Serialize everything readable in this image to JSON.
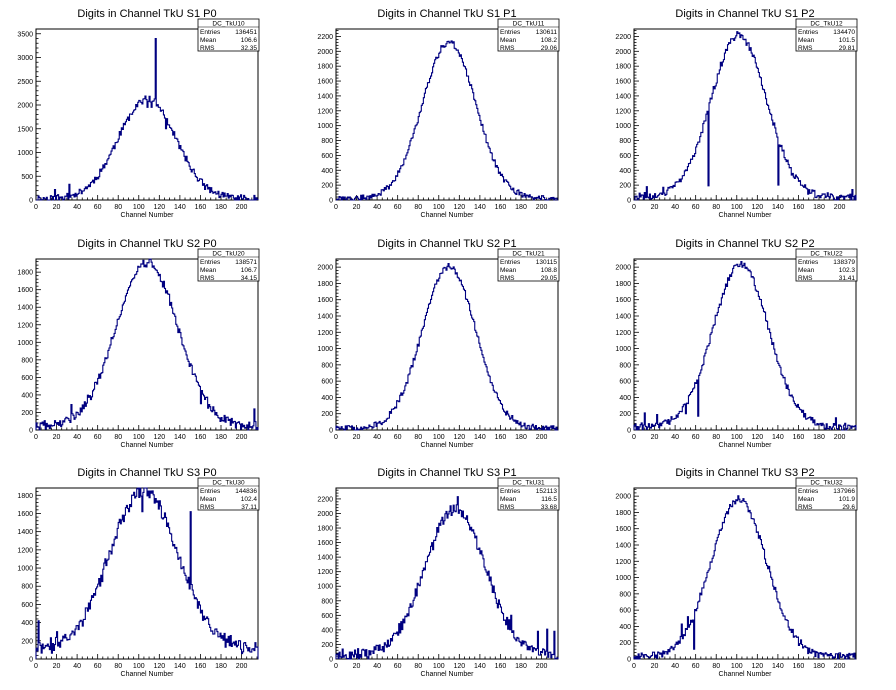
{
  "chart_data": [
    {
      "type": "histogram",
      "title": "Digits in Channel TkU S1 P0",
      "xlabel": "Channel Number",
      "xlim": [
        0,
        216
      ],
      "ylim": [
        0,
        3600
      ],
      "xticks": [
        0,
        20,
        40,
        60,
        80,
        100,
        120,
        140,
        160,
        180,
        200
      ],
      "yticks": [
        0,
        500,
        1000,
        1500,
        2000,
        2500,
        3000,
        3500
      ],
      "stats": {
        "name": "DC_TkU10",
        "entries": "136451",
        "mean": "106.6",
        "rms": "32.35"
      },
      "shape": {
        "peak_x": 108,
        "peak_y": 2100,
        "sigma": 28,
        "noise": 70,
        "baseline": 40,
        "seed": 11
      },
      "spikes": [
        [
          108,
          1950
        ],
        [
          112,
          1950
        ],
        [
          116,
          3400
        ],
        [
          120,
          1950
        ],
        [
          126,
          1500
        ],
        [
          32,
          330
        ],
        [
          18,
          220
        ]
      ]
    },
    {
      "type": "histogram",
      "title": "Digits in Channel TkU S1 P1",
      "xlabel": "Channel Number",
      "xlim": [
        0,
        216
      ],
      "ylim": [
        0,
        2300
      ],
      "xticks": [
        0,
        20,
        40,
        60,
        80,
        100,
        120,
        140,
        160,
        180,
        200
      ],
      "yticks": [
        0,
        200,
        400,
        600,
        800,
        1000,
        1200,
        1400,
        1600,
        1800,
        2000,
        2200
      ],
      "stats": {
        "name": "DC_TkU11",
        "entries": "130611",
        "mean": "108.2",
        "rms": "29.06"
      },
      "shape": {
        "peak_x": 110,
        "peak_y": 2100,
        "sigma": 26,
        "noise": 35,
        "baseline": 30,
        "seed": 21
      },
      "spikes": [
        [
          112,
          2140
        ]
      ]
    },
    {
      "type": "histogram",
      "title": "Digits in Channel TkU S1 P2",
      "xlabel": "Channel Number",
      "xlim": [
        0,
        216
      ],
      "ylim": [
        0,
        2300
      ],
      "xticks": [
        0,
        20,
        40,
        60,
        80,
        100,
        120,
        140,
        160,
        180,
        200
      ],
      "yticks": [
        0,
        200,
        400,
        600,
        800,
        1000,
        1200,
        1400,
        1600,
        1800,
        2000,
        2200
      ],
      "stats": {
        "name": "DC_TkU12",
        "entries": "134470",
        "mean": "101.5",
        "rms": "29.81"
      },
      "shape": {
        "peak_x": 102,
        "peak_y": 2180,
        "sigma": 27,
        "noise": 45,
        "baseline": 50,
        "seed": 31
      },
      "spikes": [
        [
          12,
          180
        ],
        [
          28,
          170
        ],
        [
          72,
          190
        ],
        [
          140,
          200
        ],
        [
          165,
          170
        ],
        [
          212,
          140
        ]
      ]
    },
    {
      "type": "histogram",
      "title": "Digits in Channel TkU S2 P0",
      "xlabel": "Channel Number",
      "xlim": [
        0,
        216
      ],
      "ylim": [
        0,
        1950
      ],
      "xticks": [
        0,
        20,
        40,
        60,
        80,
        100,
        120,
        140,
        160,
        180,
        200
      ],
      "yticks": [
        0,
        200,
        400,
        600,
        800,
        1000,
        1200,
        1400,
        1600,
        1800
      ],
      "stats": {
        "name": "DC_TkU20",
        "entries": "138571",
        "mean": "106.7",
        "rms": "34.15"
      },
      "shape": {
        "peak_x": 108,
        "peak_y": 1870,
        "sigma": 30,
        "noise": 45,
        "baseline": 60,
        "seed": 41
      },
      "spikes": [
        [
          34,
          290
        ],
        [
          48,
          270
        ],
        [
          160,
          300
        ],
        [
          170,
          220
        ],
        [
          212,
          240
        ]
      ]
    },
    {
      "type": "histogram",
      "title": "Digits in Channel TkU S2 P1",
      "xlabel": "Channel Number",
      "xlim": [
        0,
        216
      ],
      "ylim": [
        0,
        2100
      ],
      "xticks": [
        0,
        20,
        40,
        60,
        80,
        100,
        120,
        140,
        160,
        180,
        200
      ],
      "yticks": [
        0,
        200,
        400,
        600,
        800,
        1000,
        1200,
        1400,
        1600,
        1800,
        2000
      ],
      "stats": {
        "name": "DC_TkU21",
        "entries": "130115",
        "mean": "108.8",
        "rms": "29.05"
      },
      "shape": {
        "peak_x": 110,
        "peak_y": 1990,
        "sigma": 26,
        "noise": 35,
        "baseline": 30,
        "seed": 51
      },
      "spikes": [
        [
          108,
          2010
        ]
      ]
    },
    {
      "type": "histogram",
      "title": "Digits in Channel TkU S2 P2",
      "xlabel": "Channel Number",
      "xlim": [
        0,
        216
      ],
      "ylim": [
        0,
        2100
      ],
      "xticks": [
        0,
        20,
        40,
        60,
        80,
        100,
        120,
        140,
        160,
        180,
        200
      ],
      "yticks": [
        0,
        200,
        400,
        600,
        800,
        1000,
        1200,
        1400,
        1600,
        1800,
        2000
      ],
      "stats": {
        "name": "DC_TkU22",
        "entries": "138379",
        "mean": "102.3",
        "rms": "31.41"
      },
      "shape": {
        "peak_x": 104,
        "peak_y": 2000,
        "sigma": 27,
        "noise": 40,
        "baseline": 50,
        "seed": 61
      },
      "spikes": [
        [
          10,
          210
        ],
        [
          22,
          190
        ],
        [
          50,
          200
        ],
        [
          62,
          170
        ],
        [
          165,
          160
        ],
        [
          196,
          150
        ]
      ]
    },
    {
      "type": "histogram",
      "title": "Digits in Channel TkU S3 P0",
      "xlabel": "Channel Number",
      "xlim": [
        0,
        216
      ],
      "ylim": [
        0,
        1880
      ],
      "xticks": [
        0,
        20,
        40,
        60,
        80,
        100,
        120,
        140,
        160,
        180,
        200
      ],
      "yticks": [
        0,
        200,
        400,
        600,
        800,
        1000,
        1200,
        1400,
        1600,
        1800
      ],
      "stats": {
        "name": "DC_TkU30",
        "entries": "144836",
        "mean": "102.4",
        "rms": "37.11"
      },
      "shape": {
        "peak_x": 105,
        "peak_y": 1750,
        "sigma": 33,
        "noise": 50,
        "baseline": 150,
        "seed": 71
      },
      "spikes": [
        [
          2,
          420
        ],
        [
          20,
          300
        ],
        [
          90,
          1620
        ],
        [
          103,
          1620
        ],
        [
          150,
          1620
        ],
        [
          158,
          630
        ],
        [
          175,
          330
        ],
        [
          198,
          200
        ]
      ]
    },
    {
      "type": "histogram",
      "title": "Digits in Channel TkU S3 P1",
      "xlabel": "Channel Number",
      "xlim": [
        0,
        216
      ],
      "ylim": [
        0,
        2350
      ],
      "xticks": [
        0,
        20,
        40,
        60,
        80,
        100,
        120,
        140,
        160,
        180,
        200
      ],
      "yticks": [
        0,
        200,
        400,
        600,
        800,
        1000,
        1200,
        1400,
        1600,
        1800,
        2000,
        2200
      ],
      "stats": {
        "name": "DC_TkU31",
        "entries": "152113",
        "mean": "116.5",
        "rms": "33.68"
      },
      "shape": {
        "peak_x": 116,
        "peak_y": 2020,
        "sigma": 29,
        "noise": 70,
        "baseline": 80,
        "seed": 81
      },
      "spikes": [
        [
          118,
          2230
        ],
        [
          170,
          600
        ],
        [
          196,
          380
        ],
        [
          205,
          410
        ],
        [
          212,
          380
        ]
      ]
    },
    {
      "type": "histogram",
      "title": "Digits in Channel TkU S3 P2",
      "xlabel": "Channel Number",
      "xlim": [
        0,
        216
      ],
      "ylim": [
        0,
        2100
      ],
      "xticks": [
        0,
        20,
        40,
        60,
        80,
        100,
        120,
        140,
        160,
        180,
        200
      ],
      "yticks": [
        0,
        200,
        400,
        600,
        800,
        1000,
        1200,
        1400,
        1600,
        1800,
        2000
      ],
      "stats": {
        "name": "DC_TkU32",
        "entries": "137966",
        "mean": "101.9",
        "rms": "29.6"
      },
      "shape": {
        "peak_x": 102,
        "peak_y": 1930,
        "sigma": 27,
        "noise": 40,
        "baseline": 40,
        "seed": 91
      },
      "spikes": [
        [
          46,
          430
        ],
        [
          52,
          520
        ],
        [
          58,
          120
        ]
      ]
    }
  ],
  "stats_labels": {
    "entries": "Entries",
    "mean": "Mean",
    "rms": "RMS"
  },
  "colors": {
    "line": "#000080",
    "axis": "#000000",
    "background": "#ffffff"
  }
}
